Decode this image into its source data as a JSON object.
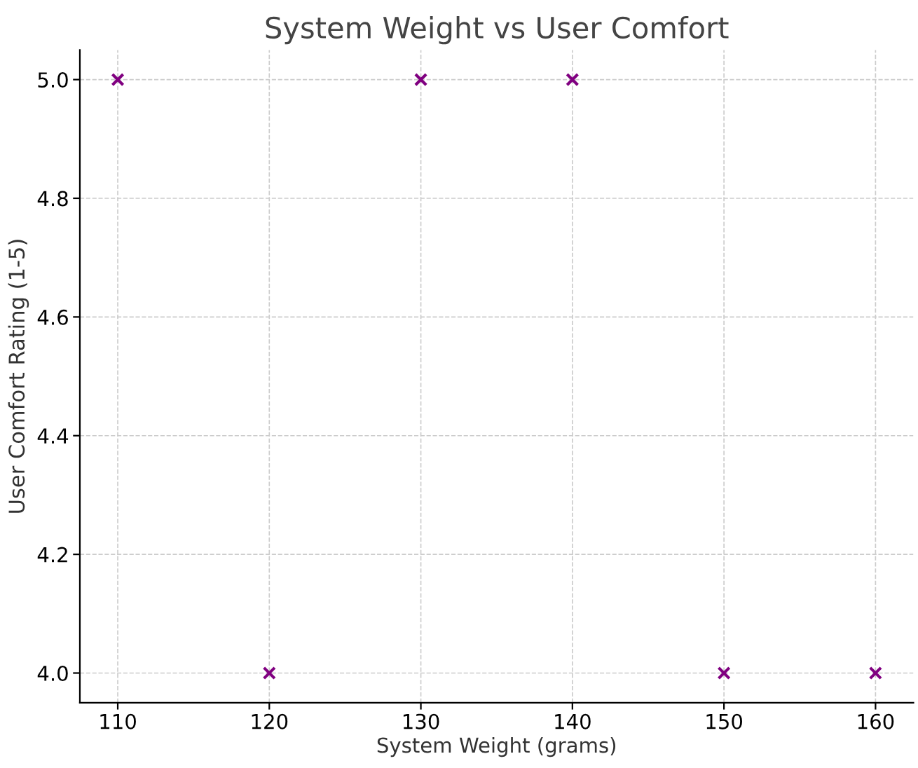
{
  "chart_data": {
    "type": "scatter",
    "title": "System Weight vs User Comfort",
    "xlabel": "System Weight (grams)",
    "ylabel": "User Comfort Rating (1-5)",
    "x": [
      110,
      120,
      130,
      140,
      150,
      160
    ],
    "series": [
      {
        "color": "#800080",
        "values": [
          5.0,
          4.0,
          5.0,
          5.0,
          4.0,
          4.0
        ]
      }
    ],
    "marker": "cross",
    "grid": true,
    "xlim": [
      107.5,
      162.5
    ],
    "ylim": [
      3.95,
      5.05
    ],
    "xticks": [
      110,
      120,
      130,
      140,
      150,
      160
    ],
    "yticks": [
      {
        "value": 4.0,
        "label": "4.0"
      },
      {
        "value": 4.2,
        "label": "4.2"
      },
      {
        "value": 4.4,
        "label": "4.4"
      },
      {
        "value": 4.6,
        "label": "4.6"
      },
      {
        "value": 4.8,
        "label": "4.8"
      },
      {
        "value": 5.0,
        "label": "5.0"
      }
    ]
  }
}
